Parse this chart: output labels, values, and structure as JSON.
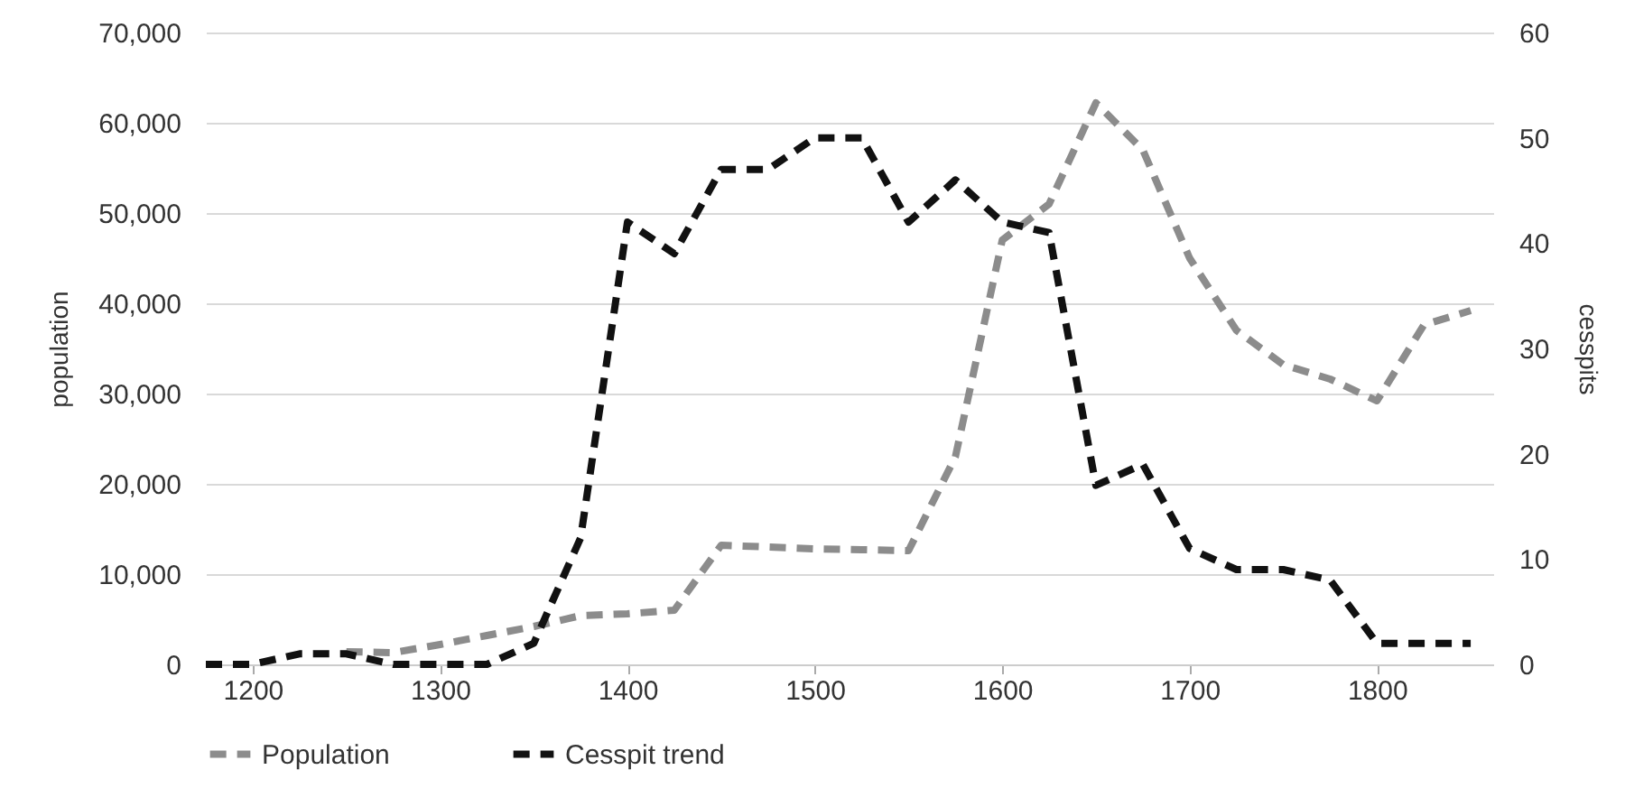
{
  "chart_data": {
    "type": "line",
    "xlabel": null,
    "ylabel": "population",
    "y2label": "cesspits",
    "xlim": [
      1175,
      1862
    ],
    "xticks": [
      1200,
      1300,
      1400,
      1500,
      1600,
      1700,
      1800
    ],
    "ylim": [
      0,
      70000
    ],
    "yticks": [
      0,
      {
        "value": 10000,
        "label": "10,000"
      },
      {
        "value": 20000,
        "label": "20,000"
      },
      {
        "value": 30000,
        "label": "30,000"
      },
      {
        "value": 40000,
        "label": "40,000"
      },
      {
        "value": 50000,
        "label": "50,000"
      },
      {
        "value": 60000,
        "label": "60,000"
      },
      {
        "value": 70000,
        "label": "70,000"
      }
    ],
    "y2lim": [
      0,
      60
    ],
    "y2ticks": [
      0,
      10,
      20,
      30,
      40,
      50,
      60
    ],
    "grid": "y",
    "legend": "bottom",
    "line_style": "dashed",
    "marker": "none",
    "series": [
      {
        "name": "Population",
        "color": "#8c8c8c",
        "x": [
          1250,
          1275,
          1300,
          1325,
          1350,
          1375,
          1400,
          1425,
          1450,
          1475,
          1500,
          1525,
          1550,
          1575,
          1600,
          1625,
          1650,
          1675,
          1700,
          1725,
          1750,
          1775,
          1800,
          1825,
          1850
        ],
        "values": [
          1400,
          1300,
          2200,
          3200,
          4200,
          5400,
          5600,
          6000,
          13200,
          13000,
          12800,
          12700,
          12600,
          23000,
          47000,
          51000,
          62200,
          57000,
          45000,
          37000,
          33200,
          31600,
          29200,
          37600,
          39200
        ]
      },
      {
        "name": "Cesspit trend",
        "color": "#111111",
        "axis": "y2",
        "x": [
          1175,
          1200,
          1225,
          1250,
          1275,
          1300,
          1325,
          1350,
          1375,
          1400,
          1425,
          1450,
          1475,
          1500,
          1525,
          1550,
          1575,
          1600,
          1625,
          1650,
          1675,
          1700,
          1725,
          1750,
          1775,
          1800,
          1825,
          1850
        ],
        "values": [
          0,
          0,
          1,
          1,
          0,
          0,
          0,
          2,
          12,
          42,
          39,
          47,
          47,
          50,
          50,
          42,
          46,
          42,
          41,
          17,
          19,
          11,
          9,
          9,
          8,
          2,
          2,
          2
        ]
      }
    ]
  }
}
